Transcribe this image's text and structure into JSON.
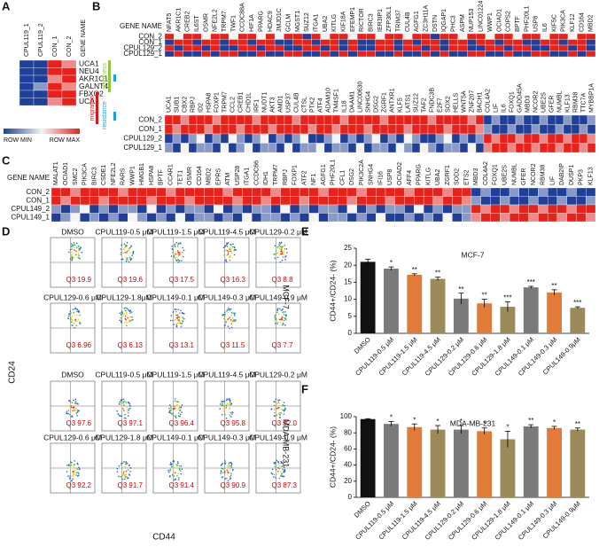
{
  "panel_labels": [
    "A",
    "B",
    "C",
    "D",
    "E",
    "F"
  ],
  "heatmap_a": {
    "column_header": "GENE NAME",
    "columns": [
      "CPUL119_1",
      "CPUL119_2",
      "CON_1",
      "CON_2"
    ],
    "rows": [
      "UCA1",
      "NEU4",
      "AKR1C1",
      "GALNT4",
      "FBXO2",
      "UCA1"
    ],
    "values": [
      [
        0,
        0,
        4,
        3
      ],
      [
        0,
        0,
        4,
        4
      ],
      [
        0,
        0,
        3,
        4
      ],
      [
        0,
        1,
        4,
        3
      ],
      [
        0,
        0,
        4,
        4
      ],
      [
        0,
        0,
        3,
        4
      ]
    ],
    "groups": [
      {
        "label": "stemness",
        "color": "#8dc63f"
      },
      {
        "label": "migration",
        "color": "#d7191c"
      },
      {
        "label": "resistance",
        "color": "#1ba1e2"
      }
    ],
    "scale": [
      "ROW MIN",
      "ROW MAX"
    ]
  },
  "heatmap_b_top": {
    "row_header": "GENE NAME",
    "genes": [
      "NFAT5",
      "AKR1C1",
      "CREB2",
      "IL6ST",
      "OSMR",
      "NFE2L2",
      "TRPM7",
      "TWF1",
      "CCDC88A",
      "HIF1A",
      "PPARG",
      "HDAC9",
      "JMJD1C",
      "GCLM",
      "MGST1",
      "SUZ12",
      "ITGA1",
      "UBA2",
      "KITLG",
      "KIF18A",
      "EFEMP1",
      "RICTOR",
      "BIRC3",
      "IER3IP1",
      "ZFP36L1",
      "TRIM37",
      "CUL4B",
      "AGFG1",
      "ZC3H11A",
      "DSTN",
      "IQGAP1",
      "PHC3",
      "ASPM",
      "NUP153",
      "LINC01224",
      "WWP1",
      "OCIAD1",
      "COPS2",
      "BPTF",
      "PHF20L1",
      "USP8",
      "IL6",
      "KIF5C",
      "PIK3CA",
      "KLF12",
      "CD164",
      "MBD2"
    ],
    "samples": [
      "CON_2",
      "CON_1",
      "CPUL129_2",
      "CPUL129_1"
    ],
    "values": [
      [
        4,
        3,
        4,
        4,
        3,
        4,
        4,
        3,
        4,
        4,
        3,
        4,
        3,
        4,
        4,
        2,
        4,
        3,
        4,
        4,
        3,
        4,
        4,
        3,
        4,
        4,
        3,
        4,
        4,
        2,
        4,
        4,
        3,
        4,
        4,
        3,
        4,
        4,
        3,
        4,
        4,
        3,
        4,
        4,
        3,
        4,
        4
      ],
      [
        3,
        4,
        4,
        3,
        4,
        4,
        3,
        4,
        4,
        3,
        4,
        4,
        3,
        3,
        4,
        4,
        3,
        4,
        4,
        3,
        4,
        3,
        3,
        4,
        4,
        3,
        4,
        3,
        4,
        4,
        3,
        4,
        4,
        3,
        4,
        4,
        3,
        4,
        4,
        3,
        3,
        4,
        4,
        3,
        4,
        4,
        3
      ],
      [
        1,
        0,
        1,
        1,
        0,
        1,
        0,
        0,
        1,
        1,
        0,
        1,
        1,
        0,
        0,
        1,
        1,
        0,
        1,
        0,
        1,
        0,
        0,
        1,
        1,
        0,
        1,
        1,
        0,
        1,
        0,
        1,
        1,
        0,
        0,
        1,
        1,
        0,
        1,
        1,
        0,
        0,
        1,
        1,
        0,
        1,
        0
      ],
      [
        0,
        1,
        0,
        0,
        1,
        0,
        1,
        1,
        0,
        0,
        1,
        0,
        0,
        1,
        1,
        0,
        0,
        1,
        0,
        1,
        0,
        1,
        1,
        0,
        0,
        1,
        0,
        0,
        1,
        0,
        1,
        0,
        0,
        1,
        1,
        0,
        0,
        1,
        0,
        0,
        1,
        1,
        0,
        0,
        1,
        0,
        1
      ]
    ]
  },
  "heatmap_b_bottom": {
    "genes": [
      "UCA1",
      "SUB1",
      "CBX2",
      "RBPJ",
      "ID2",
      "HSPA8",
      "FOXP1",
      "TRPM7",
      "CCL2",
      "CREB1",
      "CHD1L",
      "IRF1",
      "NUDT1",
      "AKT3",
      "AMD1",
      "USP37",
      "CUL4B",
      "CTSL",
      "PTK2",
      "ATF4",
      "ADAM10",
      "TM4SF1",
      "IL18",
      "DAAM1",
      "LINC00630",
      "SNHG4",
      "DSG2",
      "ZGRF1",
      "ANTXR1",
      "KLF5",
      "LATS1",
      "SUZ12",
      "TAF2",
      "FNDC3B",
      "E2F7",
      "SOX2",
      "HELLS",
      "WNT5A",
      "ZNF207",
      "BACH1",
      "COL4A2",
      "LIF",
      "IL6",
      "FOXQ1",
      "GADD45A",
      "MBD3",
      "NCOR2",
      "UBE2S",
      "GFER",
      "NUMBL",
      "KLF13",
      "RBM38",
      "TTC7A",
      "MYBBP1A"
    ],
    "samples": [
      "CON_2",
      "CON_1",
      "CPUL129_2",
      "CPUL129_1"
    ],
    "values": [
      [
        4,
        4,
        3,
        4,
        4,
        4,
        3,
        4,
        4,
        4,
        4,
        3,
        4,
        4,
        4,
        4,
        3,
        4,
        4,
        4,
        4,
        4,
        3,
        4,
        4,
        4,
        4,
        3,
        4,
        4,
        4,
        4,
        4,
        3,
        4,
        4,
        4,
        4,
        3,
        4,
        0,
        1,
        0,
        0,
        1,
        0,
        0,
        1,
        0,
        0,
        1,
        0,
        0,
        1
      ],
      [
        4,
        3,
        4,
        4,
        4,
        3,
        4,
        4,
        4,
        3,
        4,
        4,
        4,
        3,
        4,
        4,
        4,
        4,
        3,
        4,
        4,
        3,
        4,
        4,
        4,
        3,
        4,
        4,
        4,
        4,
        3,
        4,
        4,
        4,
        4,
        3,
        4,
        4,
        4,
        3,
        1,
        0,
        0,
        1,
        0,
        0,
        1,
        0,
        0,
        1,
        0,
        0,
        1,
        0
      ],
      [
        0,
        1,
        0,
        1,
        2,
        0,
        1,
        0,
        2,
        1,
        0,
        1,
        2,
        0,
        1,
        0,
        1,
        2,
        0,
        0,
        1,
        2,
        0,
        1,
        0,
        1,
        2,
        0,
        1,
        0,
        2,
        1,
        0,
        0,
        1,
        2,
        0,
        1,
        0,
        1,
        4,
        3,
        4,
        4,
        3,
        4,
        4,
        3,
        4,
        4,
        3,
        4,
        4,
        3
      ],
      [
        1,
        0,
        2,
        0,
        1,
        1,
        0,
        2,
        0,
        1,
        2,
        0,
        1,
        1,
        0,
        2,
        0,
        1,
        1,
        2,
        0,
        1,
        1,
        0,
        2,
        0,
        1,
        1,
        0,
        2,
        1,
        0,
        2,
        1,
        0,
        1,
        1,
        0,
        2,
        0,
        3,
        4,
        4,
        3,
        4,
        4,
        3,
        4,
        4,
        3,
        4,
        4,
        3,
        4
      ]
    ]
  },
  "heatmap_c": {
    "row_header": "GENE NAME",
    "genes": [
      "MALAT1",
      "OCIAD1",
      "SMC2",
      "PIK3CA",
      "BIRC3",
      "CSDE1",
      "NFE2L2",
      "RARS",
      "WWP1",
      "HMGB1",
      "HSPA8",
      "BPTF",
      "CCAR1",
      "TET1",
      "OSMR",
      "CD164",
      "MBD2",
      "EPRS",
      "ATM",
      "USP28",
      "ITGA1",
      "CCDC66",
      "IDH1",
      "TRPM7",
      "RBPJ",
      "FOXP1",
      "ATF2",
      "NF1",
      "AGFG1",
      "PHF20L1",
      "CFL1",
      "DSG2",
      "PIK3C2A",
      "SNHG4",
      "IFI16",
      "USP8",
      "OCIAD2",
      "AFF4",
      "PPARG",
      "KITLG",
      "UBA2",
      "ZGRF1",
      "SOD2",
      "ETS2",
      "MBD3",
      "COL4A2",
      "FOXQ1",
      "UBE2S",
      "NUMBL",
      "GFER",
      "NCOR2",
      "RBM38",
      "LIF",
      "DAB2IP",
      "DUSP1",
      "PKP3",
      "KLF13"
    ],
    "samples": [
      "CON_2",
      "CON_1",
      "CPUL149_2",
      "CPUL149_1"
    ],
    "values": [
      [
        4,
        4,
        3,
        4,
        4,
        4,
        4,
        3,
        4,
        4,
        4,
        4,
        3,
        4,
        4,
        4,
        4,
        4,
        3,
        4,
        4,
        4,
        4,
        3,
        4,
        4,
        4,
        4,
        3,
        4,
        4,
        4,
        3,
        4,
        4,
        4,
        4,
        3,
        4,
        4,
        4,
        3,
        4,
        4,
        0,
        1,
        0,
        0,
        1,
        0,
        0,
        1,
        0,
        0,
        1,
        0,
        0
      ],
      [
        4,
        3,
        4,
        4,
        4,
        3,
        4,
        4,
        4,
        4,
        3,
        4,
        4,
        4,
        3,
        4,
        4,
        4,
        4,
        3,
        4,
        4,
        3,
        4,
        4,
        4,
        3,
        4,
        4,
        4,
        4,
        3,
        4,
        4,
        4,
        3,
        4,
        4,
        4,
        4,
        3,
        4,
        4,
        3,
        1,
        0,
        0,
        1,
        0,
        0,
        1,
        0,
        0,
        1,
        0,
        0,
        1
      ],
      [
        1,
        0,
        1,
        2,
        0,
        1,
        0,
        1,
        1,
        0,
        2,
        0,
        1,
        0,
        1,
        1,
        0,
        2,
        0,
        1,
        0,
        1,
        1,
        0,
        2,
        0,
        1,
        0,
        1,
        1,
        0,
        2,
        0,
        1,
        0,
        1,
        1,
        0,
        2,
        0,
        1,
        0,
        1,
        1,
        4,
        3,
        4,
        4,
        3,
        4,
        4,
        3,
        4,
        4,
        3,
        4,
        4
      ],
      [
        0,
        1,
        2,
        0,
        1,
        0,
        1,
        0,
        2,
        1,
        0,
        1,
        0,
        2,
        0,
        1,
        1,
        0,
        1,
        0,
        2,
        0,
        1,
        1,
        0,
        1,
        0,
        2,
        0,
        1,
        1,
        0,
        1,
        0,
        2,
        0,
        0,
        1,
        0,
        1,
        0,
        2,
        0,
        1,
        3,
        4,
        4,
        3,
        4,
        4,
        3,
        4,
        4,
        3,
        4,
        4,
        3
      ]
    ]
  },
  "flow": {
    "y_axis": "CD24",
    "x_axis": "CD44",
    "cell_lines": [
      "MCF-7",
      "MDA-MB-231"
    ],
    "gate": "Q3",
    "plots": [
      {
        "title": "DMSO",
        "percent": "19.9"
      },
      {
        "title": "CPUL119-0.5 μM",
        "percent": "19.6"
      },
      {
        "title": "CPUL119-1.5 μM",
        "percent": "17.5"
      },
      {
        "title": "CPUL119-4.5 μM",
        "percent": "16.3"
      },
      {
        "title": "CPUL129-0.2 μM",
        "percent": "8.8"
      },
      {
        "title": "CPUL129-0.6 μM",
        "percent": "6.96"
      },
      {
        "title": "CPUL129-1.8μM",
        "percent": "6.13"
      },
      {
        "title": "CPUL149-0.1 μM",
        "percent": "13.1"
      },
      {
        "title": "CPUL149-0.3 μM",
        "percent": "11.5"
      },
      {
        "title": "CPUL149-0.9 μM",
        "percent": "7.7"
      },
      {
        "title": "DMSO",
        "percent": "97.6"
      },
      {
        "title": "CPUL119-0.5 μM",
        "percent": "97.1"
      },
      {
        "title": "CPUL119-1.5 μM",
        "percent": "96.4"
      },
      {
        "title": "CPUL119-4.5 μM",
        "percent": "95.8"
      },
      {
        "title": "CPUL129-0.2 μM",
        "percent": "92.0"
      },
      {
        "title": "CPUL129-0.6 μM",
        "percent": "92.2"
      },
      {
        "title": "CPUL129-1.8 μM",
        "percent": "91.7"
      },
      {
        "title": "CPUL149-0.1 μM",
        "percent": "91.4"
      },
      {
        "title": "CPUL149-0.3 μM",
        "percent": "90.9"
      },
      {
        "title": "CPUL149-0.9 μM",
        "percent": "87.3"
      }
    ]
  },
  "chart_data": [
    {
      "type": "bar",
      "title": "MCF-7",
      "y_label": "CD44+/CD24- (%)",
      "categories": [
        "DMSO",
        "CPUL119-0.5 μM",
        "CPUL119-1.5 μM",
        "CPUL119-4.5 μM",
        "CPUL129-0.2 μM",
        "CPUL129-0.6 μM",
        "CPUL129-1.8 μM",
        "CPUL149-0.1 μM",
        "CPUL149-0.3 μM",
        "CPUL149-0.9μM"
      ],
      "values": [
        21,
        19,
        17.2,
        16,
        10.2,
        8.8,
        7.8,
        13.5,
        12,
        7.5
      ],
      "errors": [
        0.8,
        0.5,
        0.3,
        0.5,
        1.6,
        1.2,
        1.5,
        0.3,
        0.8,
        0.3
      ],
      "significance": [
        null,
        "*",
        "**",
        "**",
        "**",
        "**",
        "***",
        "***",
        "**",
        "***"
      ],
      "colors": [
        "#111111",
        "#7a7a7a",
        "#e07b39",
        "#9c8a5a",
        "#7a7a7a",
        "#e07b39",
        "#9c8a5a",
        "#7a7a7a",
        "#e07b39",
        "#9c8a5a"
      ],
      "ylim": [
        0,
        25
      ],
      "yticks": [
        0,
        5,
        10,
        15,
        20,
        25
      ]
    },
    {
      "type": "bar",
      "title": "MDA-MB-231",
      "y_label": "CD44+/CD24- (%)",
      "categories": [
        "DMSO",
        "CPUL119-0.5 μM",
        "CPUL119-1.5 μM",
        "CPUL119-4.5 μM",
        "CPUL129-0.2 μM",
        "CPUL129-0.6 μM",
        "CPUL129-1.8 μM",
        "CPUL149-0.1 μM",
        "CPUL149-0.3 μM",
        "CPUL149-0.9μM"
      ],
      "values": [
        97,
        91,
        87,
        84,
        84,
        82,
        72,
        88,
        86,
        84
      ],
      "errors": [
        0.5,
        3,
        4,
        5,
        5,
        4,
        10,
        2,
        2,
        2
      ],
      "significance": [
        null,
        "*",
        "*",
        "*",
        "*",
        "*",
        "*",
        "**",
        "*",
        "**"
      ],
      "colors": [
        "#111111",
        "#7a7a7a",
        "#e07b39",
        "#9c8a5a",
        "#7a7a7a",
        "#e07b39",
        "#9c8a5a",
        "#7a7a7a",
        "#e07b39",
        "#9c8a5a"
      ],
      "ylim": [
        0,
        100
      ],
      "yticks": [
        0,
        20,
        40,
        60,
        80,
        100
      ]
    }
  ]
}
